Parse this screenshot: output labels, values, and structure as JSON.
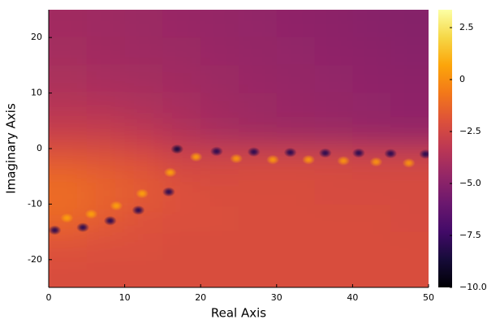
{
  "chart_data": {
    "type": "heatmap",
    "xlabel": "Real Axis",
    "ylabel": "Imaginary Axis",
    "xlim": [
      0,
      50
    ],
    "ylim": [
      -25,
      25
    ],
    "xticks": [
      0,
      10,
      20,
      30,
      40,
      50
    ],
    "yticks": [
      -20,
      -10,
      0,
      10,
      20
    ],
    "colormap": "inferno",
    "clim": [
      -10,
      3.36
    ],
    "cticks": [
      {
        "value": -10,
        "label": "−10.0"
      },
      {
        "value": -7.5,
        "label": "−7.5"
      },
      {
        "value": -5,
        "label": "−5.0"
      },
      {
        "value": -2.5,
        "label": "−2.5"
      },
      {
        "value": 0,
        "label": "0"
      },
      {
        "value": 2.5,
        "label": "2.5"
      }
    ],
    "x": [
      2.5,
      7.5,
      12.5,
      17.5,
      22.5,
      27.5,
      32.5,
      37.5,
      42.5,
      47.5
    ],
    "y": [
      22.5,
      17.5,
      12.5,
      7.5,
      2.5,
      -2.5,
      -7.5,
      -12.5,
      -17.5,
      -22.5
    ],
    "z": [
      [
        -4.2,
        -4.3,
        -4.4,
        -4.5,
        -4.6,
        -4.7,
        -4.8,
        -4.9,
        -5.0,
        -5.1
      ],
      [
        -4.1,
        -4.2,
        -4.3,
        -4.4,
        -4.5,
        -4.6,
        -4.7,
        -4.8,
        -4.9,
        -5.0
      ],
      [
        -3.9,
        -4.0,
        -4.1,
        -4.2,
        -4.4,
        -4.5,
        -4.6,
        -4.7,
        -4.8,
        -4.9
      ],
      [
        -3.5,
        -3.6,
        -3.8,
        -4.0,
        -4.2,
        -4.4,
        -4.5,
        -4.6,
        -4.7,
        -4.8
      ],
      [
        -2.8,
        -2.9,
        -3.2,
        -3.6,
        -4.0,
        -4.2,
        -4.3,
        -4.4,
        -4.5,
        -4.6
      ],
      [
        -1.6,
        -1.8,
        -2.0,
        -2.5,
        -2.4,
        -2.3,
        -2.3,
        -2.3,
        -2.4,
        -2.4
      ],
      [
        -1.0,
        -1.3,
        -1.6,
        -2.0,
        -2.2,
        -2.2,
        -2.2,
        -2.3,
        -2.3,
        -2.3
      ],
      [
        -1.2,
        -1.6,
        -2.0,
        -2.1,
        -2.1,
        -2.2,
        -2.2,
        -2.2,
        -2.2,
        -2.3
      ],
      [
        -2.0,
        -2.1,
        -2.1,
        -2.2,
        -2.2,
        -2.2,
        -2.2,
        -2.2,
        -2.2,
        -2.2
      ],
      [
        -2.2,
        -2.2,
        -2.2,
        -2.2,
        -2.2,
        -2.2,
        -2.2,
        -2.2,
        -2.2,
        -2.2
      ]
    ],
    "peaks": {
      "x": [
        2.4,
        5.6,
        8.9,
        12.3,
        16,
        19.4,
        24.7,
        29.5,
        34.2,
        38.8,
        43.1,
        47.4
      ],
      "y": [
        -12.5,
        -11.8,
        -10.3,
        -8.1,
        -4.3,
        -1.5,
        -1.8,
        -2,
        -2,
        -2.2,
        -2.4,
        -2.6
      ],
      "values": [
        0.5,
        0.5,
        0.5,
        0.5,
        0.5,
        0.4,
        0.2,
        0.2,
        0.2,
        0.1,
        0.1,
        0.1
      ]
    },
    "troughs": {
      "x": [
        0.8,
        4.5,
        8.1,
        11.8,
        15.8,
        16.9,
        22.1,
        27,
        31.8,
        36.4,
        40.8,
        45,
        49.6
      ],
      "y": [
        -14.7,
        -14.2,
        -13,
        -11.1,
        -7.8,
        -0.1,
        -0.5,
        -0.6,
        -0.7,
        -0.8,
        -0.8,
        -0.9,
        -1
      ],
      "values": [
        -8,
        -8,
        -8,
        -8,
        -8,
        -8.5,
        -8,
        -8,
        -8,
        -8,
        -8,
        -8,
        -8
      ]
    }
  }
}
